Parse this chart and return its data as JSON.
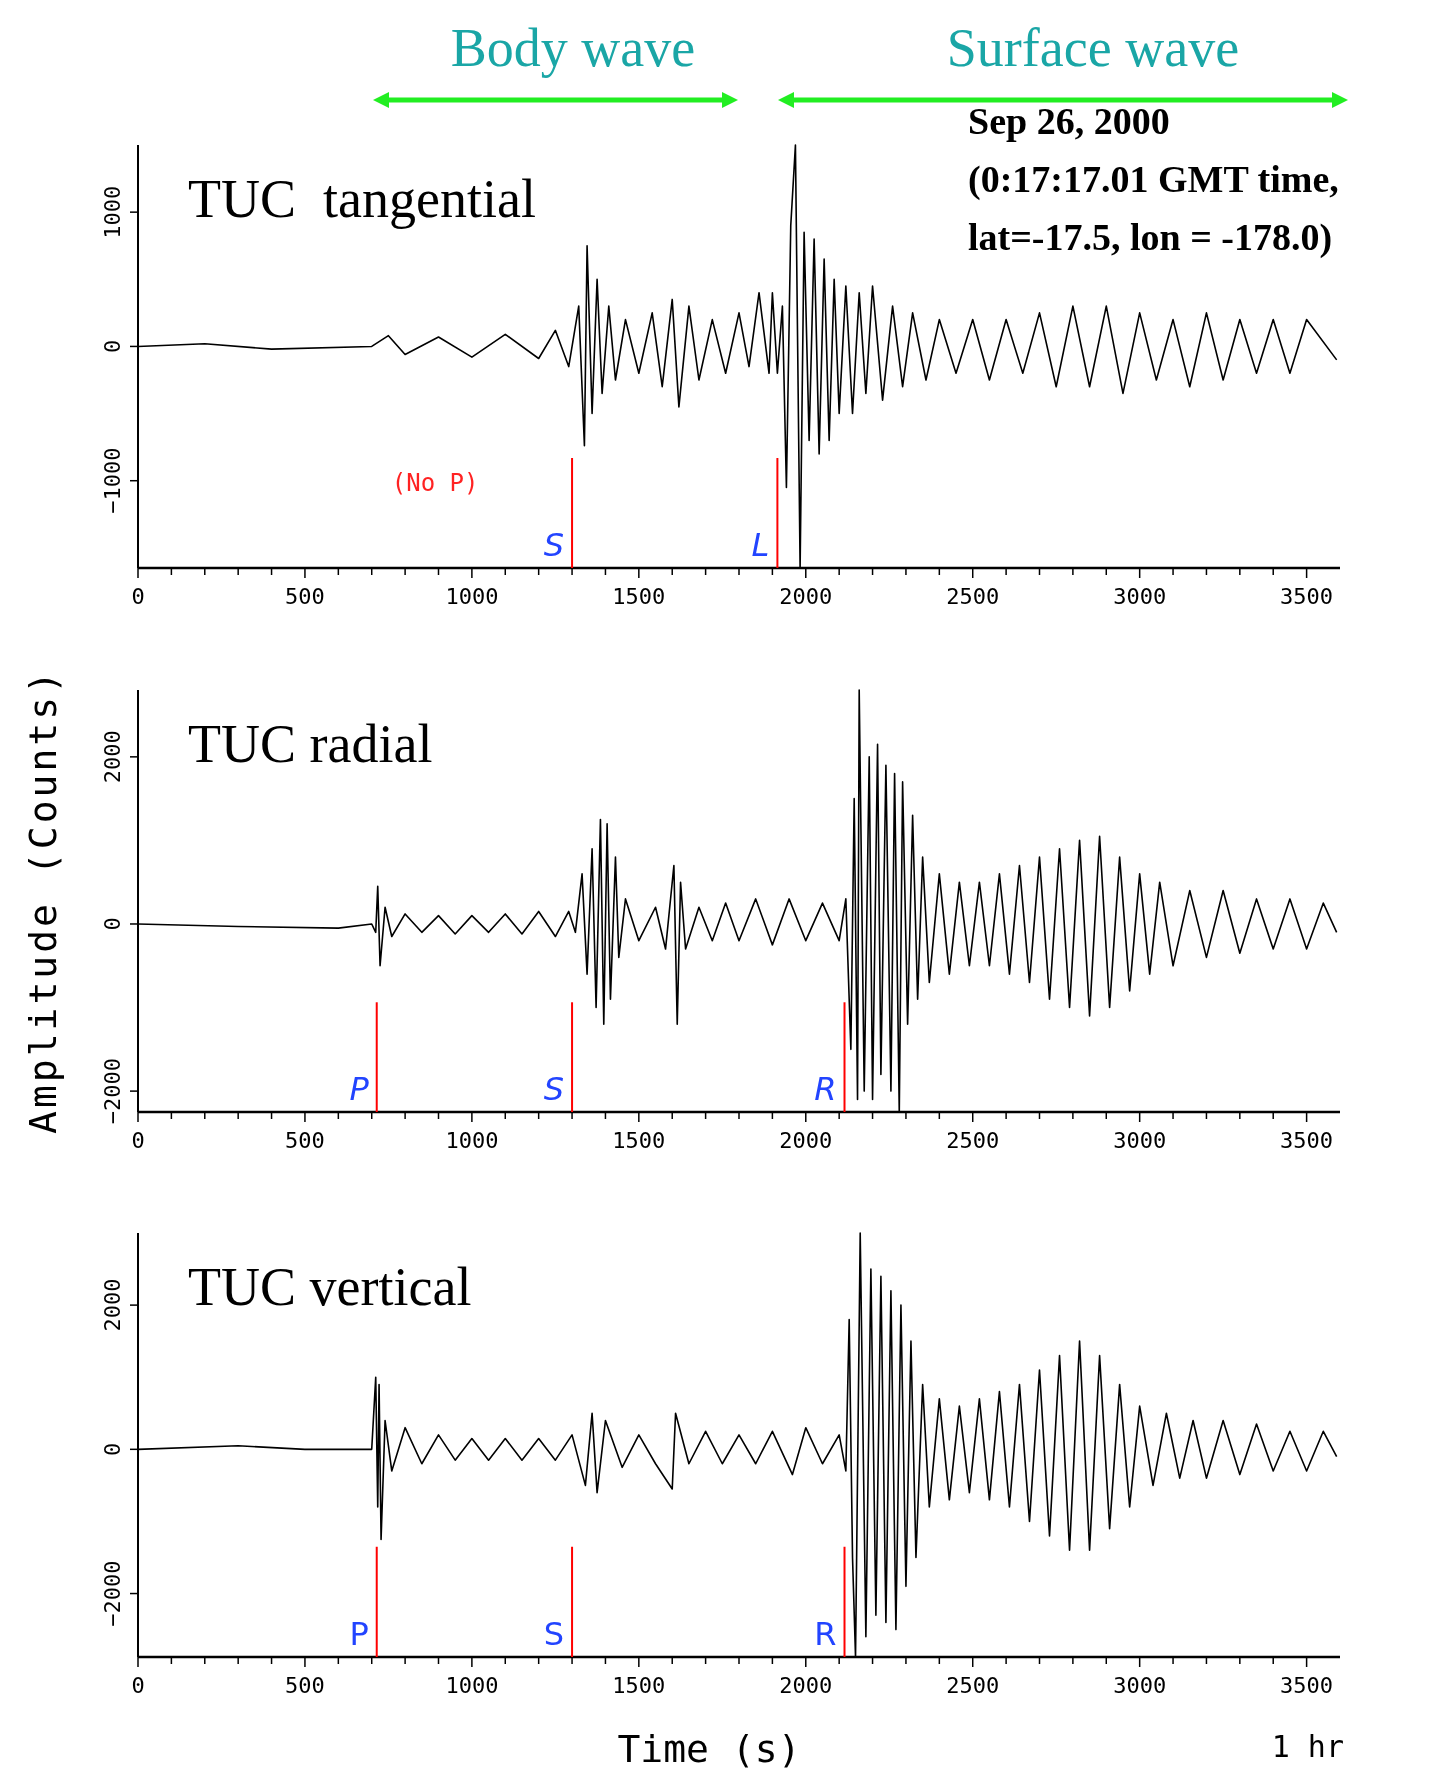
{
  "chart_data": [
    {
      "type": "line",
      "title": "TUC  tangential",
      "xlim": [
        0,
        3600
      ],
      "ylim": [
        -1650,
        1500
      ],
      "yticks": [
        -1000,
        0,
        1000
      ],
      "xticks": [
        0,
        {
          "value": 100,
          "label": null
        },
        {
          "value": 200,
          "label": null
        },
        {
          "value": 300,
          "label": null
        },
        {
          "value": 400,
          "label": null
        },
        500,
        {
          "value": 600,
          "label": null
        },
        {
          "value": 700,
          "label": null
        },
        {
          "value": 800,
          "label": null
        },
        {
          "value": 900,
          "label": null
        },
        1000,
        {
          "value": 1100,
          "label": null
        },
        {
          "value": 1200,
          "label": null
        },
        {
          "value": 1300,
          "label": null
        },
        {
          "value": 1400,
          "label": null
        },
        1500,
        {
          "value": 1600,
          "label": null
        },
        {
          "value": 1700,
          "label": null
        },
        {
          "value": 1800,
          "label": null
        },
        {
          "value": 1900,
          "label": null
        },
        2000,
        {
          "value": 2100,
          "label": null
        },
        {
          "value": 2200,
          "label": null
        },
        {
          "value": 2300,
          "label": null
        },
        {
          "value": 2400,
          "label": null
        },
        2500,
        {
          "value": 2600,
          "label": null
        },
        {
          "value": 2700,
          "label": null
        },
        {
          "value": 2800,
          "label": null
        },
        {
          "value": 2900,
          "label": null
        },
        3000,
        {
          "value": 3100,
          "label": null
        },
        {
          "value": 3200,
          "label": null
        },
        {
          "value": 3300,
          "label": null
        },
        {
          "value": 3400,
          "label": null
        },
        3500
      ],
      "grid": false,
      "series": [
        {
          "color": "#000000",
          "x": [
            0,
            200,
            400,
            700,
            750,
            800,
            900,
            1000,
            1100,
            1200,
            1250,
            1290,
            1320,
            1337,
            1345,
            1360,
            1375,
            1390,
            1410,
            1430,
            1460,
            1500,
            1540,
            1570,
            1600,
            1620,
            1650,
            1680,
            1720,
            1760,
            1800,
            1830,
            1860,
            1890,
            1900,
            1915,
            1930,
            1942,
            1955,
            1969,
            1983,
            1995,
            2010,
            2025,
            2040,
            2055,
            2070,
            2085,
            2100,
            2120,
            2140,
            2160,
            2180,
            2200,
            2230,
            2260,
            2290,
            2320,
            2360,
            2400,
            2450,
            2500,
            2550,
            2600,
            2650,
            2700,
            2750,
            2800,
            2850,
            2900,
            2950,
            3000,
            3050,
            3100,
            3150,
            3200,
            3250,
            3300,
            3350,
            3400,
            3450,
            3500,
            3590
          ],
          "values": [
            0,
            20,
            -20,
            0,
            80,
            -60,
            70,
            -80,
            90,
            -90,
            120,
            -150,
            300,
            -740,
            750,
            -500,
            500,
            -350,
            300,
            -250,
            200,
            -200,
            250,
            -300,
            350,
            -450,
            300,
            -250,
            200,
            -200,
            250,
            -150,
            400,
            -200,
            400,
            -200,
            300,
            -1050,
            900,
            1500,
            -1650,
            850,
            -700,
            800,
            -800,
            650,
            -700,
            500,
            -500,
            450,
            -500,
            400,
            -350,
            450,
            -400,
            300,
            -300,
            250,
            -250,
            200,
            -200,
            200,
            -250,
            200,
            -200,
            250,
            -300,
            300,
            -300,
            300,
            -350,
            250,
            -250,
            200,
            -300,
            250,
            -250,
            200,
            -200,
            200,
            -200,
            200,
            -100
          ]
        }
      ],
      "ref_lines": [
        {
          "axis": "x",
          "value": 1300,
          "label": "S",
          "color": "#ff0000"
        },
        {
          "axis": "x",
          "value": 1915,
          "label": "L",
          "color": "#ff0000"
        }
      ],
      "annotations": [
        "Body wave",
        "Surface wave",
        "Sep 26, 2000",
        "(0:17:17.01 GMT time,",
        "lat=-17.5, lon = -178.0)",
        "(No P)"
      ]
    },
    {
      "type": "line",
      "title": "TUC radial",
      "ylabel": "Amplitude (Counts)",
      "xlim": [
        0,
        3600
      ],
      "ylim": [
        -2250,
        2800
      ],
      "yticks": [
        -2000,
        0,
        2000
      ],
      "xticks": [
        0,
        {
          "value": 100,
          "label": null
        },
        {
          "value": 200,
          "label": null
        },
        {
          "value": 300,
          "label": null
        },
        {
          "value": 400,
          "label": null
        },
        500,
        {
          "value": 600,
          "label": null
        },
        {
          "value": 700,
          "label": null
        },
        {
          "value": 800,
          "label": null
        },
        {
          "value": 900,
          "label": null
        },
        1000,
        {
          "value": 1100,
          "label": null
        },
        {
          "value": 1200,
          "label": null
        },
        {
          "value": 1300,
          "label": null
        },
        {
          "value": 1400,
          "label": null
        },
        1500,
        {
          "value": 1600,
          "label": null
        },
        {
          "value": 1700,
          "label": null
        },
        {
          "value": 1800,
          "label": null
        },
        {
          "value": 1900,
          "label": null
        },
        2000,
        {
          "value": 2100,
          "label": null
        },
        {
          "value": 2200,
          "label": null
        },
        {
          "value": 2300,
          "label": null
        },
        {
          "value": 2400,
          "label": null
        },
        2500,
        {
          "value": 2600,
          "label": null
        },
        {
          "value": 2700,
          "label": null
        },
        {
          "value": 2800,
          "label": null
        },
        {
          "value": 2900,
          "label": null
        },
        3000,
        {
          "value": 3100,
          "label": null
        },
        {
          "value": 3200,
          "label": null
        },
        {
          "value": 3300,
          "label": null
        },
        {
          "value": 3400,
          "label": null
        },
        3500
      ],
      "grid": false,
      "series": [
        {
          "color": "#000000",
          "x": [
            0,
            300,
            600,
            700,
            712,
            718,
            725,
            740,
            760,
            800,
            850,
            900,
            950,
            1000,
            1050,
            1100,
            1150,
            1200,
            1250,
            1290,
            1310,
            1330,
            1345,
            1360,
            1372,
            1385,
            1395,
            1405,
            1415,
            1430,
            1440,
            1460,
            1500,
            1550,
            1580,
            1605,
            1615,
            1625,
            1640,
            1680,
            1720,
            1760,
            1800,
            1850,
            1900,
            1950,
            2000,
            2050,
            2100,
            2120,
            2135,
            2145,
            2155,
            2160,
            2175,
            2190,
            2200,
            2215,
            2225,
            2240,
            2255,
            2266,
            2280,
            2290,
            2305,
            2320,
            2335,
            2350,
            2370,
            2400,
            2430,
            2460,
            2490,
            2520,
            2550,
            2580,
            2610,
            2640,
            2670,
            2700,
            2730,
            2760,
            2790,
            2820,
            2850,
            2880,
            2910,
            2940,
            2970,
            3000,
            3030,
            3060,
            3100,
            3150,
            3200,
            3250,
            3300,
            3350,
            3400,
            3450,
            3500,
            3550,
            3590
          ],
          "values": [
            0,
            -30,
            -50,
            0,
            -100,
            450,
            -500,
            200,
            -150,
            120,
            -100,
            100,
            -120,
            100,
            -100,
            120,
            -120,
            150,
            -150,
            150,
            -100,
            600,
            -600,
            900,
            -1000,
            1250,
            -1200,
            1200,
            -900,
            800,
            -400,
            300,
            -200,
            200,
            -300,
            700,
            -1200,
            500,
            -300,
            200,
            -200,
            250,
            -200,
            300,
            -250,
            300,
            -200,
            250,
            -200,
            300,
            -1500,
            1500,
            -2100,
            2800,
            -2000,
            2000,
            -2100,
            2150,
            -1800,
            1900,
            -2000,
            1800,
            -2250,
            1700,
            -1200,
            1300,
            -900,
            800,
            -700,
            600,
            -600,
            500,
            -500,
            500,
            -500,
            600,
            -600,
            700,
            -700,
            800,
            -900,
            900,
            -1000,
            1000,
            -1100,
            1050,
            -1000,
            800,
            -800,
            600,
            -600,
            500,
            -500,
            400,
            -400,
            400,
            -350,
            300,
            -300,
            300,
            -300,
            250,
            -100
          ]
        }
      ],
      "ref_lines": [
        {
          "axis": "x",
          "value": 715,
          "label": "P",
          "color": "#ff0000"
        },
        {
          "axis": "x",
          "value": 1300,
          "label": "S",
          "color": "#ff0000"
        },
        {
          "axis": "x",
          "value": 2116,
          "label": "R",
          "color": "#ff0000"
        }
      ]
    },
    {
      "type": "line",
      "title": "TUC vertical",
      "xlabel": "Time (s)",
      "xlim": [
        0,
        3600
      ],
      "ylim": [
        -2880,
        3000
      ],
      "yticks": [
        -2000,
        0,
        2000
      ],
      "xticks": [
        0,
        {
          "value": 100,
          "label": null
        },
        {
          "value": 200,
          "label": null
        },
        {
          "value": 300,
          "label": null
        },
        {
          "value": 400,
          "label": null
        },
        500,
        {
          "value": 600,
          "label": null
        },
        {
          "value": 700,
          "label": null
        },
        {
          "value": 800,
          "label": null
        },
        {
          "value": 900,
          "label": null
        },
        1000,
        {
          "value": 1100,
          "label": null
        },
        {
          "value": 1200,
          "label": null
        },
        {
          "value": 1300,
          "label": null
        },
        {
          "value": 1400,
          "label": null
        },
        1500,
        {
          "value": 1600,
          "label": null
        },
        {
          "value": 1700,
          "label": null
        },
        {
          "value": 1800,
          "label": null
        },
        {
          "value": 1900,
          "label": null
        },
        2000,
        {
          "value": 2100,
          "label": null
        },
        {
          "value": 2200,
          "label": null
        },
        {
          "value": 2300,
          "label": null
        },
        {
          "value": 2400,
          "label": null
        },
        2500,
        {
          "value": 2600,
          "label": null
        },
        {
          "value": 2700,
          "label": null
        },
        {
          "value": 2800,
          "label": null
        },
        {
          "value": 2900,
          "label": null
        },
        3000,
        {
          "value": 3100,
          "label": null
        },
        {
          "value": 3200,
          "label": null
        },
        {
          "value": 3300,
          "label": null
        },
        {
          "value": 3400,
          "label": null
        },
        3500
      ],
      "grid": false,
      "series": [
        {
          "color": "#000000",
          "x": [
            0,
            300,
            500,
            700,
            712,
            718,
            722,
            728,
            740,
            760,
            800,
            850,
            900,
            950,
            1000,
            1050,
            1100,
            1150,
            1200,
            1250,
            1300,
            1340,
            1360,
            1375,
            1400,
            1450,
            1500,
            1550,
            1600,
            1610,
            1650,
            1700,
            1750,
            1800,
            1850,
            1900,
            1960,
            2000,
            2050,
            2100,
            2120,
            2130,
            2140,
            2149,
            2163,
            2180,
            2195,
            2210,
            2225,
            2240,
            2255,
            2270,
            2285,
            2300,
            2315,
            2330,
            2350,
            2370,
            2400,
            2430,
            2460,
            2490,
            2520,
            2550,
            2580,
            2610,
            2640,
            2670,
            2700,
            2730,
            2760,
            2790,
            2820,
            2850,
            2880,
            2910,
            2940,
            2970,
            3000,
            3040,
            3080,
            3120,
            3160,
            3200,
            3250,
            3300,
            3350,
            3400,
            3450,
            3500,
            3550,
            3590
          ],
          "values": [
            0,
            50,
            0,
            0,
            1000,
            -800,
            900,
            -1250,
            400,
            -300,
            300,
            -200,
            200,
            -150,
            150,
            -150,
            150,
            -150,
            150,
            -150,
            200,
            -500,
            500,
            -600,
            400,
            -250,
            200,
            -200,
            -550,
            500,
            -200,
            250,
            -200,
            200,
            -200,
            250,
            -350,
            300,
            -200,
            200,
            -300,
            1800,
            -1500,
            -2880,
            3000,
            -2600,
            2500,
            -2300,
            2400,
            -2400,
            2200,
            -2500,
            2000,
            -1900,
            1500,
            -1500,
            900,
            -800,
            700,
            -700,
            600,
            -600,
            700,
            -700,
            800,
            -800,
            900,
            -1000,
            1100,
            -1200,
            1300,
            -1400,
            1500,
            -1400,
            1300,
            -1100,
            900,
            -800,
            600,
            -500,
            500,
            -400,
            400,
            -400,
            400,
            -350,
            350,
            -300,
            250,
            -300,
            250,
            -100
          ]
        }
      ],
      "ref_lines": [
        {
          "axis": "x",
          "value": 715,
          "label": "P",
          "color": "#ff0000"
        },
        {
          "axis": "x",
          "value": 1300,
          "label": "S",
          "color": "#ff0000"
        },
        {
          "axis": "x",
          "value": 2116,
          "label": "R",
          "color": "#ff0000"
        }
      ],
      "annotations": [
        "1 hr"
      ]
    }
  ]
}
